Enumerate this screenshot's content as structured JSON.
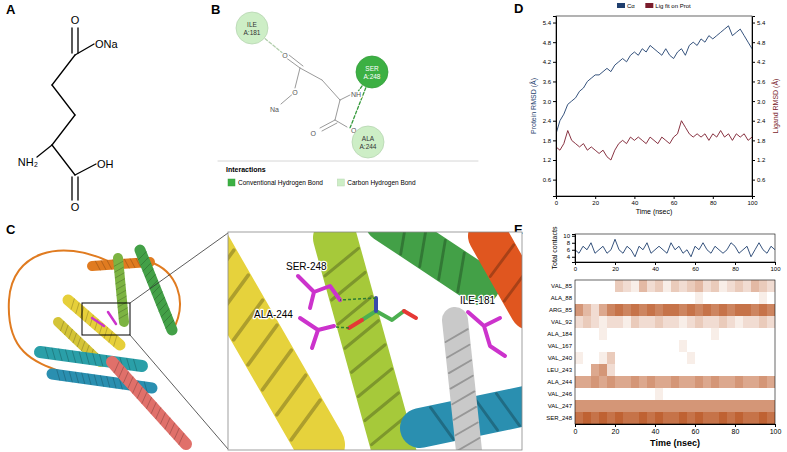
{
  "panel_labels": [
    "A",
    "B",
    "C",
    "D",
    "E"
  ],
  "structure": {
    "atoms": [
      "O",
      "ONa",
      "NH₂",
      "OH",
      "O"
    ]
  },
  "interaction": {
    "residues": [
      {
        "name": "ILE",
        "id": "A:181",
        "type": "Carbon Hydrogen Bond"
      },
      {
        "name": "SER",
        "id": "A:248",
        "type": "Conventional Hydrogen Bond"
      },
      {
        "name": "ALA",
        "id": "A:244",
        "type": "Carbon Hydrogen Bond"
      }
    ],
    "ligand_atoms": [
      "O",
      "O",
      "Na",
      "NH",
      "O",
      "O"
    ],
    "legend_title": "Interactions",
    "legend": [
      {
        "label": "Conventional Hydrogen Bond",
        "color": "#3cb043"
      },
      {
        "label": "Carbon Hydrogen Bond",
        "color": "#cdeec6"
      }
    ]
  },
  "protein": {
    "labels": [
      "SER-248",
      "ALA-244",
      "ILE-181"
    ]
  },
  "chart_data": [
    {
      "type": "line",
      "x": [
        0,
        2,
        4,
        6,
        8,
        10,
        12,
        14,
        16,
        18,
        20,
        22,
        24,
        26,
        28,
        30,
        32,
        34,
        36,
        38,
        40,
        42,
        44,
        46,
        48,
        50,
        52,
        54,
        56,
        58,
        60,
        62,
        64,
        66,
        68,
        70,
        72,
        74,
        76,
        78,
        80,
        82,
        84,
        86,
        88,
        90,
        92,
        94,
        96,
        98,
        100
      ],
      "series": [
        {
          "name": "Cα",
          "color": "#1f3f6e",
          "values": [
            2.0,
            2.4,
            2.6,
            2.9,
            3.0,
            3.1,
            3.3,
            3.4,
            3.6,
            3.7,
            3.8,
            3.8,
            3.9,
            4.0,
            3.9,
            4.1,
            4.2,
            4.3,
            4.2,
            4.4,
            4.5,
            4.4,
            4.6,
            4.5,
            4.7,
            4.6,
            4.5,
            4.4,
            4.6,
            4.4,
            4.3,
            4.5,
            4.6,
            4.4,
            4.7,
            4.8,
            4.7,
            4.9,
            4.8,
            5.0,
            4.9,
            5.0,
            5.1,
            5.2,
            5.3,
            5.0,
            5.1,
            5.2,
            5.0,
            4.8,
            4.6
          ]
        },
        {
          "name": "Lig fit on Prot",
          "color": "#7a1c2c",
          "axis": "y2",
          "values": [
            1.6,
            1.5,
            1.7,
            2.1,
            1.8,
            1.7,
            1.6,
            1.7,
            1.5,
            1.6,
            1.5,
            1.4,
            1.5,
            1.3,
            1.2,
            1.5,
            1.7,
            1.8,
            1.7,
            1.9,
            1.8,
            1.9,
            1.8,
            1.7,
            1.9,
            1.8,
            1.7,
            1.9,
            1.8,
            1.7,
            1.9,
            2.0,
            2.4,
            2.2,
            2.0,
            1.9,
            2.0,
            1.9,
            2.0,
            1.8,
            2.0,
            1.9,
            2.1,
            1.9,
            2.0,
            1.8,
            2.0,
            1.9,
            2.0,
            1.8,
            1.9
          ]
        }
      ],
      "xlim": [
        0,
        100
      ],
      "xticks": [
        0,
        20,
        40,
        60,
        80,
        100
      ],
      "ylim": [
        0.1,
        5.6
      ],
      "yticks": [
        0.6,
        1.2,
        1.8,
        2.4,
        {
          "value": 3,
          "label": "3.0"
        },
        3.6,
        4.2,
        4.8,
        5.4
      ],
      "y2lim": [
        0.1,
        5.6
      ],
      "y2ticks": [
        0.6,
        1.2,
        1.8,
        2.4,
        {
          "value": 3,
          "label": "3.0"
        },
        3.6,
        4.2,
        4.8,
        5.4
      ],
      "x_label": "Time (nsec)",
      "y_label": "Protein RMSD (Å)",
      "y2_label": "Ligand RMSD (Å)",
      "legend": "top"
    },
    {
      "type": "line",
      "y_label": "Total contacts",
      "x": [
        0,
        2,
        4,
        6,
        8,
        10,
        12,
        14,
        16,
        18,
        20,
        22,
        24,
        26,
        28,
        30,
        32,
        34,
        36,
        38,
        40,
        42,
        44,
        46,
        48,
        50,
        52,
        54,
        56,
        58,
        60,
        62,
        64,
        66,
        68,
        70,
        72,
        74,
        76,
        78,
        80,
        82,
        84,
        86,
        88,
        90,
        92,
        94,
        96,
        98,
        100
      ],
      "values": [
        6,
        5,
        7,
        6,
        8,
        5,
        6,
        7,
        5,
        6,
        9,
        6,
        5,
        7,
        6,
        4,
        7,
        6,
        8,
        5,
        6,
        7,
        6,
        5,
        8,
        6,
        7,
        5,
        6,
        4,
        7,
        6,
        8,
        6,
        5,
        7,
        6,
        5,
        6,
        8,
        7,
        5,
        6,
        7,
        4,
        6,
        8,
        6,
        5,
        7,
        6
      ],
      "color": "#1f3f6e",
      "xlim": [
        0,
        100
      ],
      "xticks": [
        0,
        20,
        40,
        60,
        80,
        100
      ],
      "ylim": [
        2.5,
        10.5
      ],
      "yticks": [
        4,
        6,
        8,
        10
      ]
    },
    {
      "type": "heatmap",
      "rows": [
        "VAL_85",
        "ALA_88",
        "ARG_85",
        "VAL_92",
        "ALA_184",
        "VAL_167",
        "VAL_240",
        "LEU_243",
        "ALA_244",
        "VAL_246",
        "VAL_247",
        "SER_248"
      ],
      "x_bins": [
        0,
        4,
        8,
        12,
        16,
        20,
        24,
        28,
        32,
        36,
        40,
        44,
        48,
        52,
        56,
        60,
        64,
        68,
        72,
        76,
        80,
        84,
        88,
        92,
        96,
        100
      ],
      "cells": [
        [
          0,
          0,
          0,
          0,
          0,
          0.3,
          0.2,
          0.1,
          0.4,
          0.2,
          0.3,
          0.1,
          0.3,
          0.2,
          0.3,
          0.4,
          0.2,
          0.3,
          0.1,
          0.2,
          0.3,
          0.2,
          0.4,
          0.3,
          0.2
        ],
        [
          0,
          0,
          0,
          0,
          0,
          0,
          0,
          0,
          0,
          0,
          0,
          0,
          0,
          0,
          0,
          0.1,
          0,
          0,
          0,
          0,
          0,
          0,
          0,
          0.1,
          0
        ],
        [
          0.6,
          0.4,
          0.2,
          0.5,
          0.7,
          0.8,
          0.7,
          0.8,
          0.7,
          0.8,
          0.7,
          0.8,
          0.8,
          0.7,
          0.8,
          0.7,
          0.8,
          0.7,
          0.8,
          0.7,
          0.8,
          0.8,
          0.7,
          0.8,
          0.7
        ],
        [
          0.2,
          0.3,
          0.2,
          0.1,
          0.2,
          0.2,
          0.1,
          0.3,
          0.2,
          0.2,
          0.3,
          0.2,
          0.2,
          0.1,
          0.2,
          0.3,
          0.2,
          0.2,
          0.3,
          0.2,
          0.1,
          0.2,
          0.2,
          0.3,
          0.2
        ],
        [
          0,
          0,
          0,
          0.1,
          0,
          0,
          0,
          0,
          0,
          0,
          0,
          0,
          0,
          0,
          0,
          0,
          0,
          0.1,
          0,
          0,
          0,
          0,
          0,
          0,
          0
        ],
        [
          0,
          0,
          0,
          0,
          0,
          0,
          0,
          0,
          0,
          0,
          0,
          0,
          0,
          0.1,
          0,
          0,
          0,
          0,
          0,
          0,
          0,
          0,
          0,
          0,
          0
        ],
        [
          0.1,
          0,
          0,
          0.1,
          0.3,
          0,
          0,
          0,
          0,
          0,
          0,
          0,
          0,
          0,
          0.1,
          0,
          0,
          0,
          0,
          0,
          0,
          0,
          0,
          0,
          0
        ],
        [
          0,
          0,
          0.5,
          0.6,
          0.2,
          0,
          0,
          0,
          0,
          0,
          0,
          0,
          0,
          0,
          0,
          0,
          0,
          0,
          0,
          0,
          0,
          0,
          0,
          0,
          0
        ],
        [
          0.5,
          0.5,
          0.6,
          0.5,
          0.6,
          0.5,
          0.5,
          0.6,
          0.5,
          0.6,
          0.5,
          0.5,
          0.6,
          0.5,
          0.5,
          0.6,
          0.5,
          0.6,
          0.5,
          0.5,
          0.6,
          0.5,
          0.5,
          0.6,
          0.5
        ],
        [
          0,
          0,
          0,
          0,
          0,
          0,
          0,
          0,
          0,
          0,
          0.1,
          0,
          0,
          0,
          0,
          0,
          0,
          0,
          0,
          0,
          0,
          0,
          0,
          0,
          0
        ],
        [
          0.6,
          0.6,
          0.6,
          0.6,
          0.6,
          0.6,
          0.6,
          0.6,
          0.6,
          0.6,
          0.6,
          0.6,
          0.6,
          0.6,
          0.6,
          0.6,
          0.6,
          0.6,
          0.6,
          0.6,
          0.6,
          0.6,
          0.6,
          0.6,
          0.6
        ],
        [
          0.8,
          0.9,
          0.8,
          0.9,
          0.8,
          0.9,
          0.8,
          0.8,
          0.9,
          0.8,
          0.9,
          0.8,
          0.8,
          0.9,
          0.8,
          0.9,
          0.8,
          0.8,
          0.9,
          0.8,
          0.9,
          0.8,
          0.8,
          0.9,
          0.8
        ]
      ],
      "color": "#b8501c",
      "xlim": [
        0,
        100
      ],
      "xticks": [
        0,
        20,
        40,
        60,
        80,
        100
      ],
      "x_label": "Time (nsec)"
    }
  ]
}
